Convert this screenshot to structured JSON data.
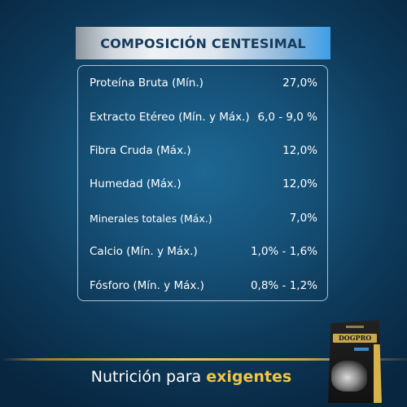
{
  "title": "COMPOSICIÓN CENTESIMAL",
  "rows": [
    {
      "label": "Proteína Bruta (Mín.)",
      "value": "27,0%"
    },
    {
      "label": "Extracto Etéreo (Mín. y Máx.)",
      "value": "6,0 - 9,0 %"
    },
    {
      "label": "Fibra Cruda (Máx.)",
      "value": "12,0%"
    },
    {
      "label": "Humedad (Máx.)",
      "value": "12,0%"
    },
    {
      "label": "Minerales totales (Máx.)",
      "value": "7,0%"
    },
    {
      "label": "Calcio (Mín. y Máx.)",
      "value": "1,0% - 1,6%"
    },
    {
      "label": "Fósforo (Mín. y Máx.)",
      "value": "0,8% - 1,2%"
    }
  ],
  "tagline": {
    "prefix": "Nutrición para ",
    "highlight": "exigentes"
  },
  "product": {
    "brand": "DOGPRO"
  },
  "colors": {
    "accent": "#f1c644",
    "title_text": "#153a5c",
    "background": "#17557d"
  }
}
